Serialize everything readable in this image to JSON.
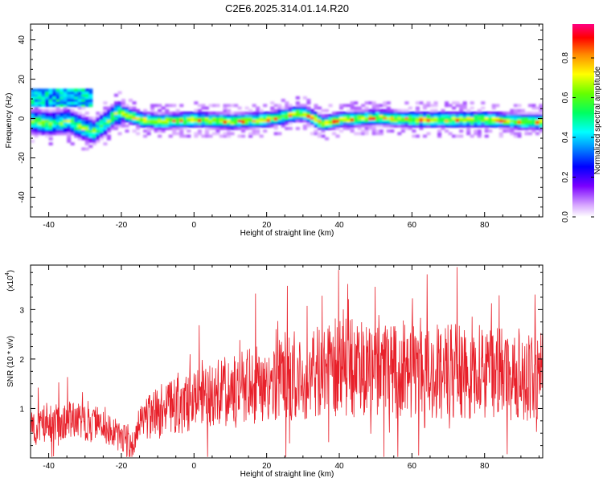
{
  "title": "C2E6.2025.314.01.14.R20",
  "chart_data": [
    {
      "type": "heatmap",
      "id": "spectrogram",
      "xlabel": "Height of straight line (km)",
      "ylabel": "Frequency (Hz)",
      "xlim": [
        -45,
        96
      ],
      "ylim": [
        -50,
        48
      ],
      "xticks": [
        -40,
        -20,
        0,
        20,
        40,
        60,
        80
      ],
      "yticks": [
        40,
        20,
        0,
        -20,
        -40
      ],
      "ytick_labels": [
        "40",
        "20",
        "0",
        "-20",
        "-40"
      ],
      "colorbar": {
        "label": "Normalized spectral amplitude",
        "ticks": [
          0.0,
          0.2,
          0.4,
          0.6,
          0.8
        ],
        "tick_labels": [
          "0.0",
          "0.2",
          "0.4",
          "0.6",
          "0.8"
        ],
        "range": [
          0,
          0.97
        ]
      },
      "ridge": {
        "description_points_x": [
          -45,
          -40,
          -35,
          -30,
          -28,
          -25,
          -22,
          -20,
          -15,
          -10,
          0,
          10,
          20,
          28,
          30,
          35,
          40,
          50,
          60,
          70,
          80,
          90,
          96
        ],
        "description_points_y": [
          -2,
          -3,
          -2,
          -6,
          -7,
          -3,
          2,
          2,
          -1,
          -2,
          -1,
          -2,
          -1,
          2,
          2,
          -3,
          -1,
          0,
          -1,
          -1,
          -1,
          -2,
          -2
        ]
      }
    },
    {
      "type": "line",
      "id": "snr",
      "xlabel": "Height of straight line (km)",
      "ylabel": "SNR (10 * v/v)",
      "y_multiplier": "(x10",
      "y_multiplier_exp": "4",
      "y_multiplier_close": ")",
      "xlim": [
        -45,
        96
      ],
      "ylim": [
        0,
        3.9
      ],
      "xticks": [
        -40,
        -20,
        0,
        20,
        40,
        60,
        80
      ],
      "yticks": [
        1,
        2,
        3
      ],
      "ytick_labels": [
        "1",
        "2",
        "3"
      ],
      "line_color": "#e8202a",
      "envelope_x": [
        -45,
        -35,
        -25,
        -20,
        -17,
        -15,
        -10,
        0,
        10,
        20,
        30,
        40,
        50,
        60,
        70,
        80,
        90,
        96
      ],
      "envelope_y": [
        0.7,
        0.75,
        0.65,
        0.45,
        0.2,
        0.75,
        0.95,
        1.15,
        1.35,
        1.5,
        1.65,
        1.85,
        1.8,
        1.75,
        1.75,
        1.75,
        1.6,
        1.7
      ]
    }
  ]
}
